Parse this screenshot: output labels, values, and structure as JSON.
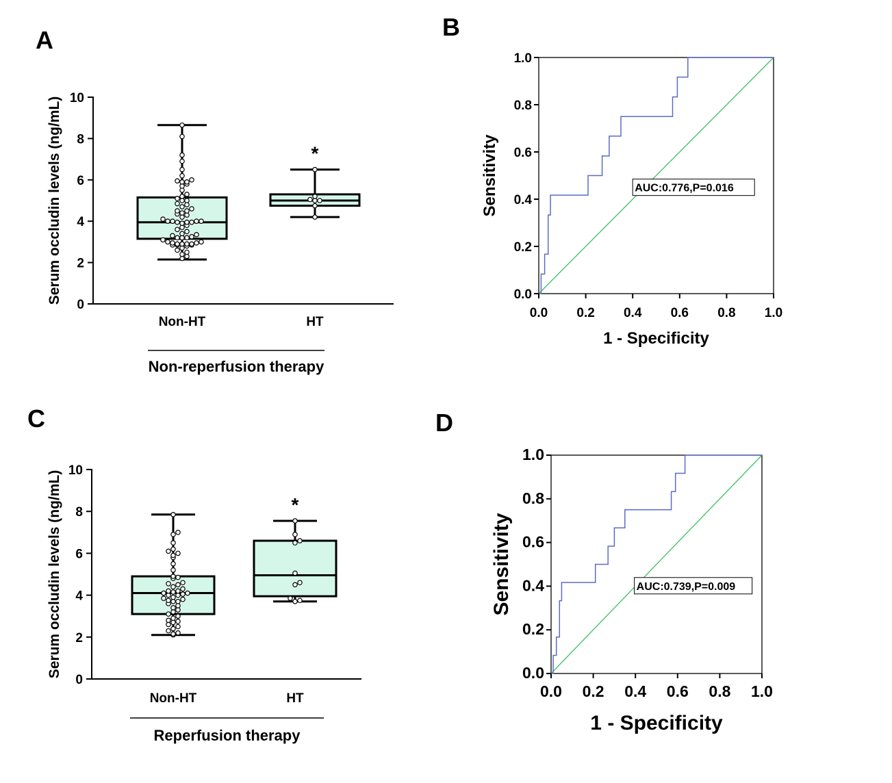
{
  "panels": {
    "A": "A",
    "B": "B",
    "C": "C",
    "D": "D"
  },
  "chart_data": [
    {
      "id": "A",
      "type": "box",
      "ylabel": "Serum occludin levels (ng/mL)",
      "ylim": [
        0,
        10
      ],
      "yticks": [
        "0",
        "2",
        "4",
        "6",
        "8",
        "10"
      ],
      "categories": [
        "Non-HT",
        "HT"
      ],
      "group_label": "Non-reperfusion therapy",
      "significance": [
        "",
        "*"
      ],
      "boxes": [
        {
          "min": 2.15,
          "q1": 3.15,
          "median": 3.95,
          "q3": 5.15,
          "max": 8.65,
          "points": [
            2.2,
            2.3,
            2.4,
            2.5,
            2.6,
            2.7,
            2.8,
            2.85,
            2.85,
            2.85,
            2.9,
            2.9,
            2.9,
            2.9,
            2.95,
            2.95,
            3.0,
            3.0,
            3.1,
            3.2,
            3.2,
            3.2,
            3.25,
            3.3,
            3.35,
            3.4,
            3.5,
            3.6,
            3.7,
            3.8,
            3.9,
            3.95,
            3.95,
            3.95,
            4.0,
            4.0,
            4.0,
            4.0,
            4.1,
            4.2,
            4.3,
            4.35,
            4.4,
            4.5,
            4.5,
            4.6,
            4.7,
            4.8,
            4.85,
            5.0,
            5.0,
            5.1,
            5.2,
            5.3,
            5.5,
            5.7,
            5.8,
            5.9,
            5.9,
            5.95,
            6.0,
            6.2,
            6.5,
            6.9,
            7.2,
            8.1,
            8.65
          ]
        },
        {
          "min": 4.2,
          "q1": 4.75,
          "median": 5.0,
          "q3": 5.3,
          "max": 6.5,
          "points": [
            4.2,
            4.75,
            5.0,
            5.0,
            5.05,
            5.2,
            6.5
          ]
        }
      ]
    },
    {
      "id": "B",
      "type": "line",
      "xlabel": "1 -  Specificity",
      "ylabel": "Sensitivity",
      "xlim": [
        0,
        1
      ],
      "ylim": [
        0,
        1
      ],
      "xticks": [
        "0.0",
        "0.2",
        "0.4",
        "0.6",
        "0.8",
        "1.0"
      ],
      "yticks": [
        "0.0",
        "0.2",
        "0.4",
        "0.6",
        "0.8",
        "1.0"
      ],
      "annotation": "AUC:0.776,P=0.016",
      "series": [
        {
          "x": [
            0,
            0.01,
            0.01,
            0.025,
            0.025,
            0.04,
            0.04,
            0.05,
            0.05,
            0.21,
            0.21,
            0.27,
            0.27,
            0.3,
            0.3,
            0.35,
            0.35,
            0.57,
            0.57,
            0.59,
            0.59,
            0.61,
            0.61,
            0.635,
            0.635,
            1.0
          ],
          "y": [
            0,
            0,
            0.083,
            0.083,
            0.167,
            0.167,
            0.333,
            0.333,
            0.417,
            0.417,
            0.5,
            0.5,
            0.583,
            0.583,
            0.667,
            0.667,
            0.75,
            0.75,
            0.833,
            0.833,
            0.917,
            0.917,
            0.917,
            0.917,
            1.0,
            1.0
          ]
        },
        {
          "x": [
            0,
            1
          ],
          "y": [
            0,
            1
          ]
        }
      ]
    },
    {
      "id": "C",
      "type": "box",
      "ylabel": "Serum occludin levels (ng/mL)",
      "ylim": [
        0,
        10
      ],
      "yticks": [
        "0",
        "2",
        "4",
        "6",
        "8",
        "10"
      ],
      "categories": [
        "Non-HT",
        "HT"
      ],
      "group_label": "Reperfusion therapy",
      "significance": [
        "",
        "*"
      ],
      "boxes": [
        {
          "min": 2.1,
          "q1": 3.1,
          "median": 4.1,
          "q3": 4.9,
          "max": 7.85,
          "points": [
            2.1,
            2.15,
            2.2,
            2.3,
            2.4,
            2.5,
            2.6,
            2.7,
            2.75,
            2.8,
            2.9,
            3.0,
            3.1,
            3.2,
            3.3,
            3.4,
            3.5,
            3.6,
            3.7,
            3.7,
            3.75,
            3.8,
            3.85,
            3.9,
            4.0,
            4.0,
            4.05,
            4.1,
            4.1,
            4.15,
            4.2,
            4.2,
            4.3,
            4.4,
            4.5,
            4.55,
            4.6,
            4.8,
            4.85,
            4.9,
            5.2,
            5.5,
            5.8,
            5.9,
            6.0,
            6.1,
            6.2,
            6.5,
            6.9,
            7.0,
            7.85
          ]
        },
        {
          "min": 3.7,
          "q1": 3.95,
          "median": 4.95,
          "q3": 6.6,
          "max": 7.55,
          "points": [
            3.7,
            3.75,
            3.85,
            4.5,
            4.6,
            5.05,
            6.5,
            6.6,
            6.9,
            7.55
          ]
        }
      ]
    },
    {
      "id": "D",
      "type": "line",
      "xlabel": "1 - Specificity",
      "ylabel": "Sensitivity",
      "xlim": [
        0,
        1
      ],
      "ylim": [
        0,
        1
      ],
      "xticks": [
        "0.0",
        "0.2",
        "0.4",
        "0.6",
        "0.8",
        "1.0"
      ],
      "yticks": [
        "0.0",
        "0.2",
        "0.4",
        "0.6",
        "0.8",
        "1.0"
      ],
      "annotation": "AUC:0.739,P=0.009",
      "series": [
        {
          "x": [
            0,
            0.01,
            0.01,
            0.025,
            0.025,
            0.04,
            0.04,
            0.05,
            0.05,
            0.21,
            0.21,
            0.27,
            0.27,
            0.3,
            0.3,
            0.35,
            0.35,
            0.57,
            0.57,
            0.59,
            0.59,
            0.61,
            0.61,
            0.635,
            0.635,
            1.0
          ],
          "y": [
            0,
            0,
            0.083,
            0.083,
            0.167,
            0.167,
            0.333,
            0.333,
            0.417,
            0.417,
            0.5,
            0.5,
            0.583,
            0.583,
            0.667,
            0.667,
            0.75,
            0.75,
            0.833,
            0.833,
            0.917,
            0.917,
            0.917,
            0.917,
            1.0,
            1.0
          ]
        },
        {
          "x": [
            0,
            1
          ],
          "y": [
            0,
            1
          ]
        }
      ]
    }
  ],
  "colors": {
    "box_fill": "#d4f7ea",
    "roc_line": "#5b6bc4",
    "reference_line": "#3fbf62"
  }
}
